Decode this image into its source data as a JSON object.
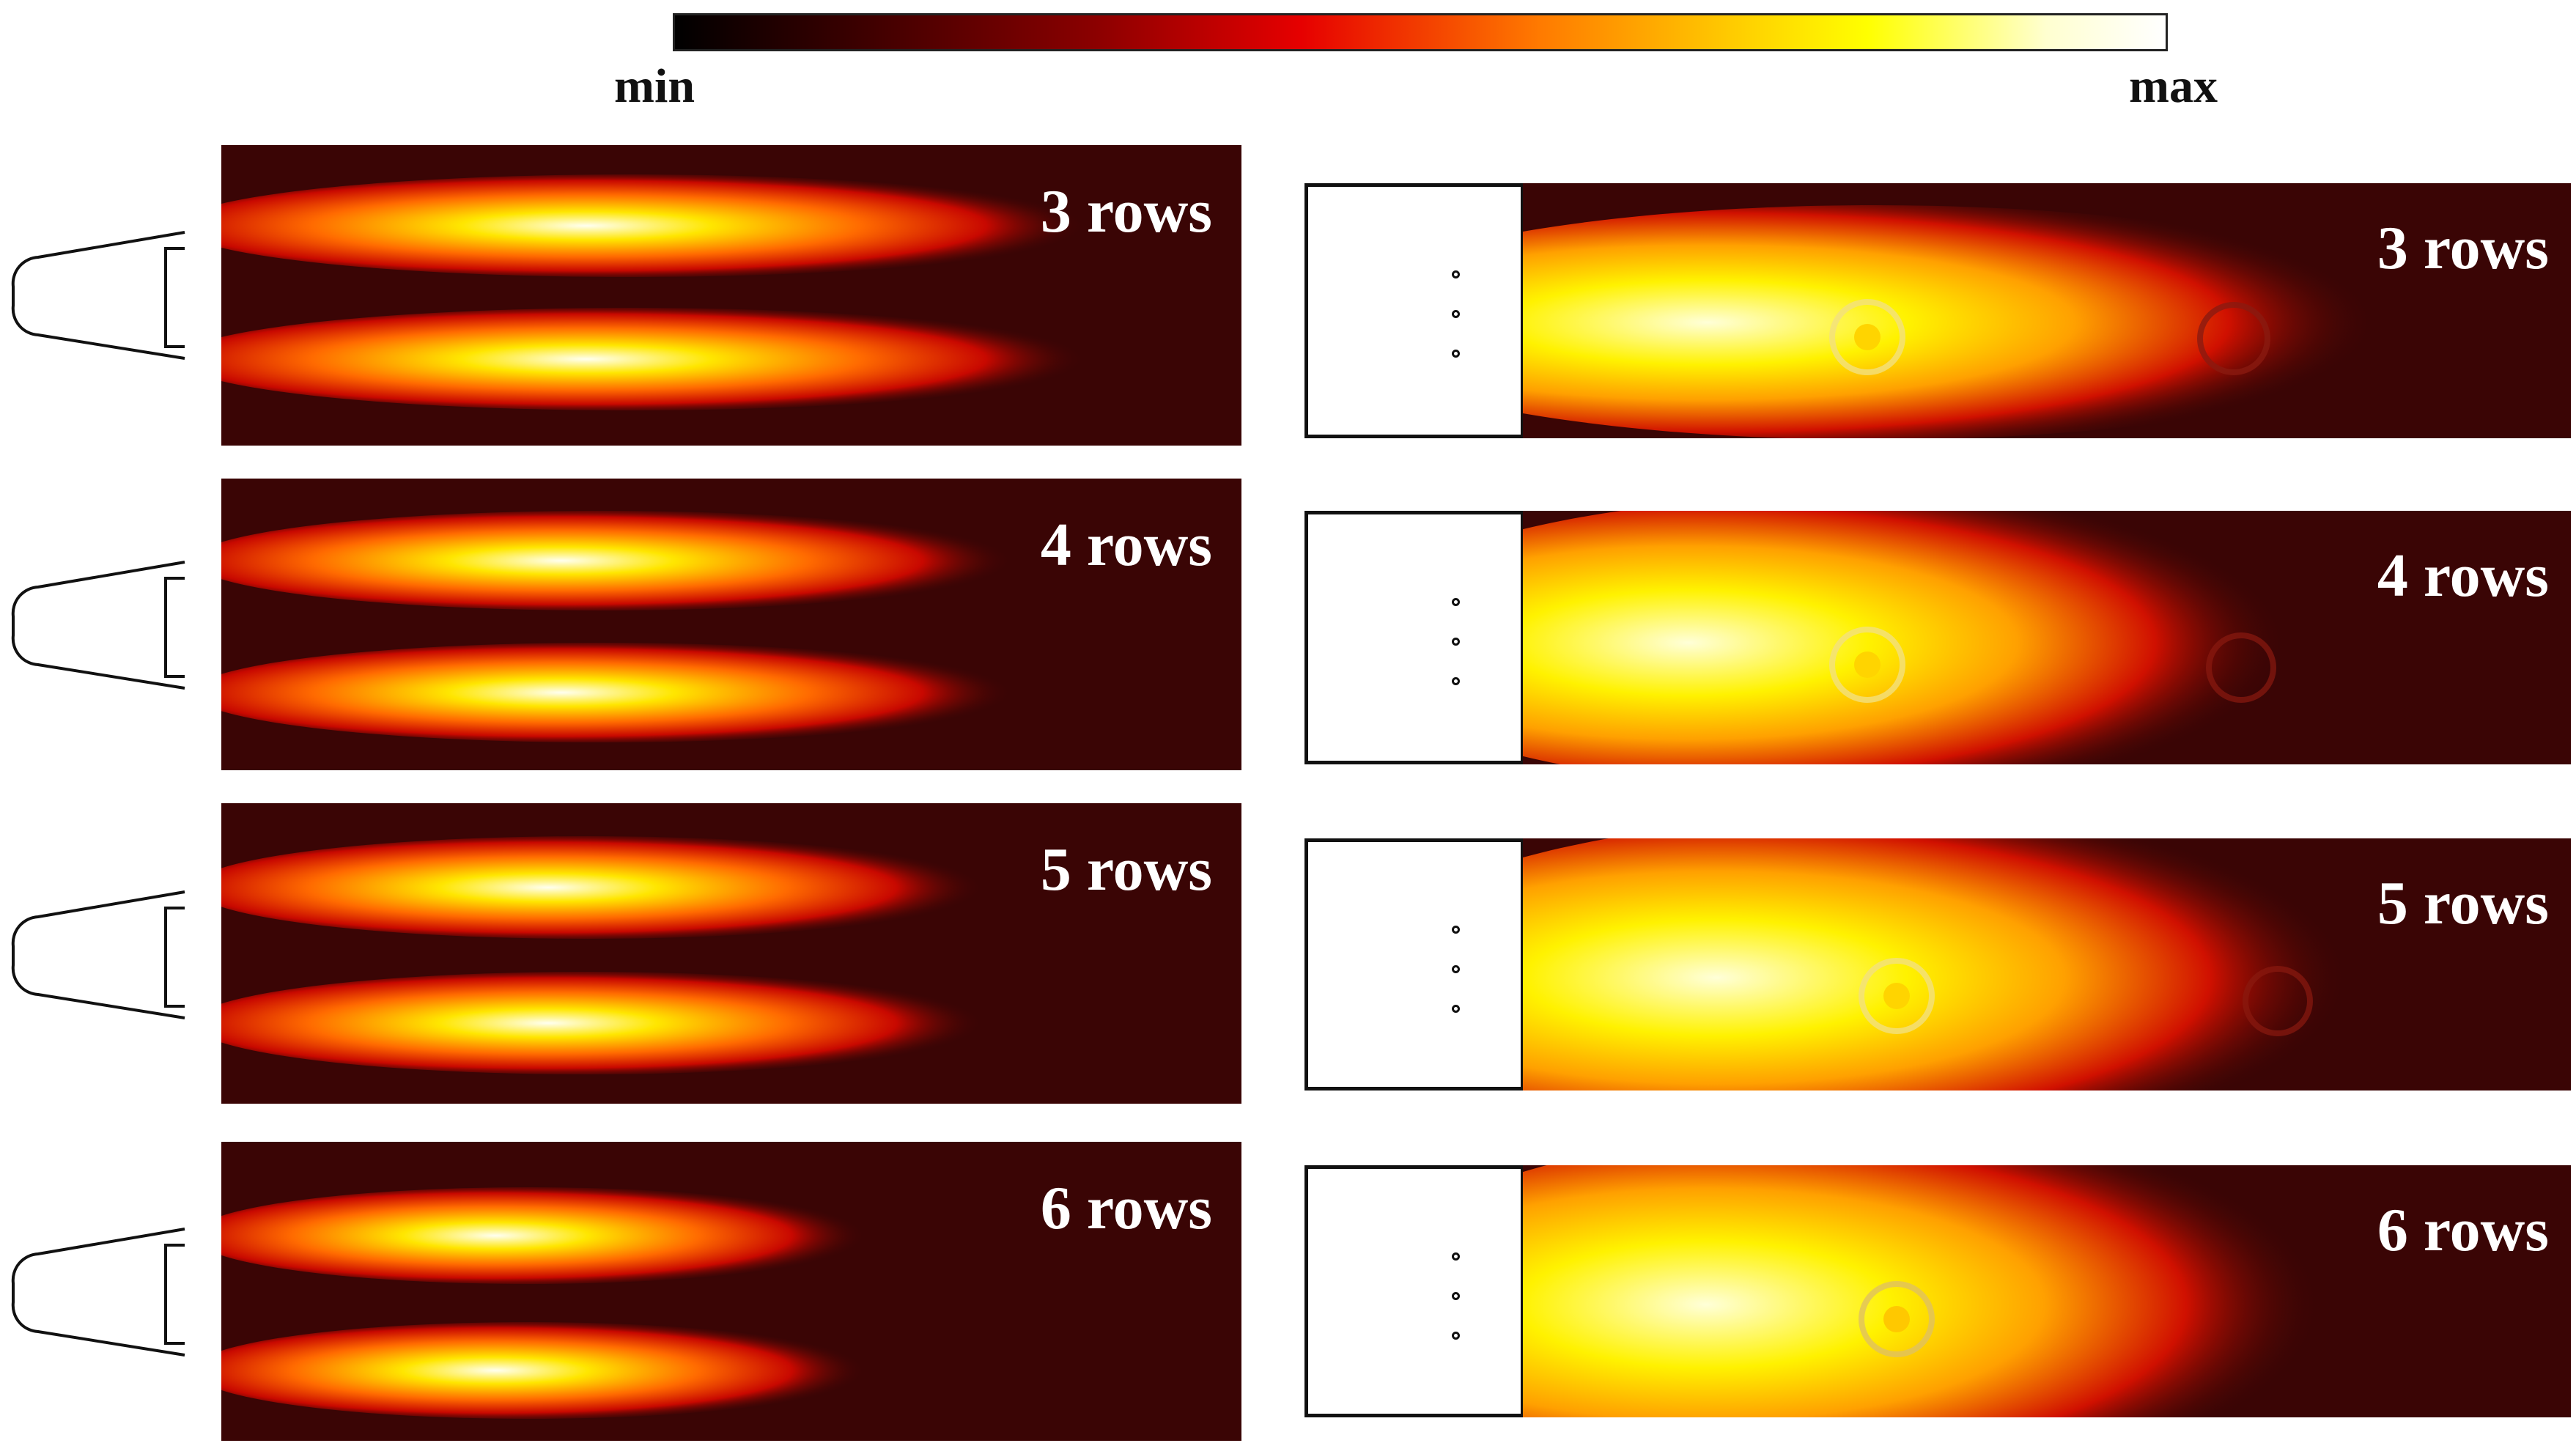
{
  "colorbar": {
    "min_label": "min",
    "max_label": "max"
  },
  "left_panels": [
    {
      "label": "3 rows"
    },
    {
      "label": "4 rows"
    },
    {
      "label": "5 rows"
    },
    {
      "label": "6 rows"
    }
  ],
  "right_panels": [
    {
      "label": "3 rows"
    },
    {
      "label": "4 rows"
    },
    {
      "label": "5 rows"
    },
    {
      "label": "6 rows"
    }
  ],
  "colors": {
    "background": "#3a0505",
    "flame_core": "#ffffe0",
    "flame_mid": "#ffd200",
    "flame_outer": "#e01000"
  }
}
